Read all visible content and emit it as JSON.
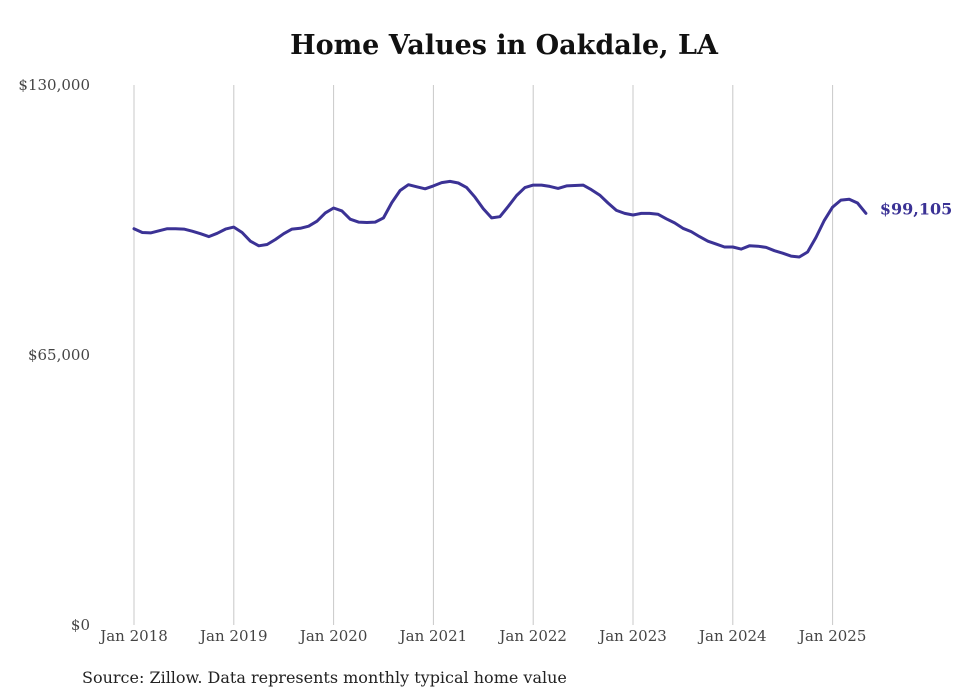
{
  "chart_data": {
    "type": "line",
    "title": "Home Values in Oakdale, LA",
    "xlabel": "",
    "ylabel": "",
    "ylim": [
      0,
      130000
    ],
    "y_ticks": [
      "$130,000",
      "$65,000",
      "$0"
    ],
    "y_tick_values": [
      130000,
      65000,
      0
    ],
    "x_tick_labels": [
      "Jan 2018",
      "Jan 2019",
      "Jan 2020",
      "Jan 2021",
      "Jan 2022",
      "Jan 2023",
      "Jan 2024",
      "Jan 2025"
    ],
    "grid": "vertical",
    "line_color": "#3b3295",
    "end_label": "$99,105",
    "series": [
      {
        "values": [
          95400,
          94500,
          94400,
          94900,
          95400,
          95400,
          95300,
          94800,
          94200,
          93500,
          94300,
          95300,
          95800,
          94500,
          92400,
          91300,
          91600,
          92800,
          94200,
          95300,
          95500,
          96000,
          97200,
          99200,
          100400,
          99700,
          97700,
          97000,
          96900,
          97000,
          98000,
          101700,
          104600,
          106000,
          105500,
          105000,
          105700,
          106500,
          106800,
          106400,
          105300,
          103000,
          100200,
          98000,
          98300,
          100800,
          103400,
          105300,
          105900,
          105900,
          105600,
          105100,
          105700,
          105800,
          105900,
          104800,
          103500,
          101600,
          99800,
          99100,
          98700,
          99100,
          99100,
          98900,
          97800,
          96800,
          95500,
          94700,
          93500,
          92400,
          91700,
          91000,
          91000,
          90500,
          91300,
          91200,
          90900,
          90100,
          89500,
          88800,
          88600,
          89800,
          93300,
          97400,
          100600,
          102300,
          102500,
          101600,
          99105
        ]
      }
    ]
  },
  "footer": {
    "source": "Source: Zillow. Data represents monthly typical home value"
  }
}
